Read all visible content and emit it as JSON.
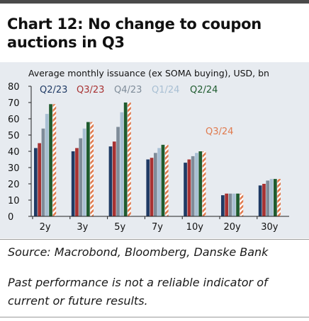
{
  "title": "Chart 12: No change to coupon auctions in Q3",
  "source": "Source: Macrobond, Bloomberg, Danske Bank",
  "disclaimer": "Past performance is not a reliable indicator of current or future results.",
  "chart_data": {
    "type": "bar",
    "subtitle": "Average monthly issuance (ex SOMA buying), USD, bn",
    "categories": [
      "2y",
      "3y",
      "5y",
      "7y",
      "10y",
      "20y",
      "30y"
    ],
    "ylim": [
      0,
      80
    ],
    "yticks": [
      0,
      10,
      20,
      30,
      40,
      50,
      60,
      70,
      80
    ],
    "grid": false,
    "legend_position": "top",
    "series": [
      {
        "name": "Q2/23",
        "color": "#1f3a64",
        "pattern": "solid",
        "values": [
          42,
          40,
          43,
          35,
          33,
          13,
          19
        ]
      },
      {
        "name": "Q3/23",
        "color": "#a83232",
        "pattern": "solid",
        "values": [
          45,
          42,
          46,
          36,
          35,
          14,
          20
        ]
      },
      {
        "name": "Q4/23",
        "color": "#7f8c99",
        "pattern": "solid",
        "values": [
          54,
          48,
          55,
          39,
          37,
          14,
          22
        ]
      },
      {
        "name": "Q1/24",
        "color": "#a8bfd3",
        "pattern": "solid",
        "values": [
          63,
          54,
          64,
          42,
          39,
          14,
          23
        ]
      },
      {
        "name": "Q2/24",
        "color": "#1e5b2e",
        "pattern": "solid",
        "values": [
          69,
          58,
          70,
          44,
          40,
          14,
          23
        ]
      },
      {
        "name": "Q3/24",
        "color": "#e07a4e",
        "pattern": "hatched",
        "values": [
          69,
          58,
          70,
          44,
          40,
          14,
          23
        ]
      }
    ],
    "annotation": "Q3/24"
  }
}
